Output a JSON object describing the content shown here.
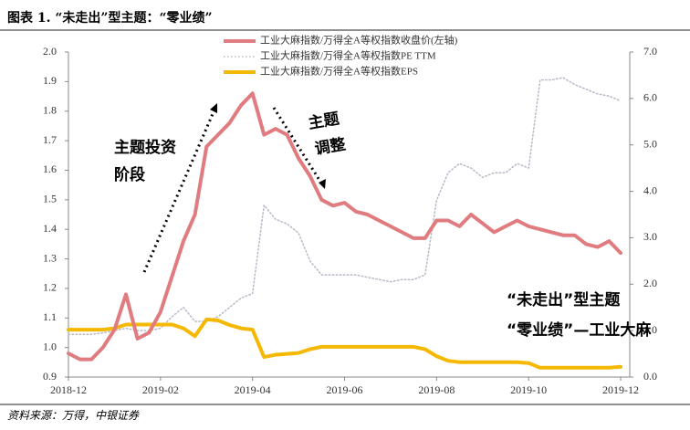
{
  "chart_data": {
    "type": "line",
    "title": "图表 1. “未走出”型主题：“零业绩”",
    "source": "资料来源：万得，中银证券",
    "annotations": [
      "主题投资",
      "阶段",
      "主题",
      "调整",
      "“未走出”型主题",
      "“零业绩”—工业大麻"
    ],
    "categories": [
      "2018-12",
      null,
      null,
      null,
      null,
      null,
      null,
      null,
      "2019-02",
      null,
      null,
      null,
      null,
      null,
      null,
      null,
      "2019-04",
      null,
      null,
      null,
      null,
      null,
      null,
      null,
      "2019-06",
      null,
      null,
      null,
      null,
      null,
      null,
      null,
      "2019-08",
      null,
      null,
      null,
      null,
      null,
      null,
      null,
      "2019-10",
      null,
      null,
      null,
      null,
      null,
      null,
      null,
      "2019-12"
    ],
    "ylim": [
      0.9,
      2.0
    ],
    "yticks": [
      0.9,
      {
        "value": 1,
        "label": "1.0"
      },
      1.1,
      1.2,
      1.3,
      1.4,
      1.5,
      1.6,
      1.7,
      1.8,
      1.9,
      {
        "value": 2,
        "label": "2.0"
      }
    ],
    "y2lim": [
      0,
      7
    ],
    "y2ticks": [
      {
        "value": 0,
        "label": "0.0"
      },
      {
        "value": 1,
        "label": "1.0"
      },
      {
        "value": 2,
        "label": "2.0"
      },
      {
        "value": 3,
        "label": "3.0"
      },
      {
        "value": 4,
        "label": "4.0"
      },
      {
        "value": 5,
        "label": "5.0"
      },
      {
        "value": 6,
        "label": "6.0"
      },
      {
        "value": 7,
        "label": "7.0"
      }
    ],
    "series": [
      {
        "name": "工业大麻指数/万得全A等权指数收盘价(左轴)",
        "color": "#e07b7f",
        "style": "solid",
        "values": [
          0.98,
          0.96,
          0.96,
          1.0,
          1.06,
          1.18,
          1.03,
          1.05,
          1.12,
          1.24,
          1.36,
          1.45,
          1.68,
          1.72,
          1.76,
          1.82,
          1.86,
          1.72,
          1.74,
          1.72,
          1.64,
          1.58,
          1.5,
          1.48,
          1.49,
          1.46,
          1.45,
          1.43,
          1.41,
          1.39,
          1.37,
          1.37,
          1.43,
          1.43,
          1.41,
          1.45,
          1.42,
          1.39,
          1.41,
          1.43,
          1.41,
          1.4,
          1.39,
          1.38,
          1.38,
          1.35,
          1.34,
          1.36,
          1.32
        ]
      },
      {
        "name": "工业大麻指数/万得全A等权指数PE TTM",
        "color": "#b8b8c8",
        "style": "dotted",
        "axis": "y2",
        "values": [
          0.92,
          0.92,
          0.92,
          0.95,
          1.0,
          1.05,
          1.0,
          1.0,
          1.05,
          1.3,
          1.5,
          1.2,
          1.2,
          1.3,
          1.5,
          1.7,
          1.8,
          3.7,
          3.4,
          3.3,
          3.1,
          2.5,
          2.2,
          2.2,
          2.2,
          2.2,
          2.15,
          2.1,
          2.05,
          2.1,
          2.1,
          2.2,
          3.8,
          4.4,
          4.6,
          4.5,
          4.3,
          4.4,
          4.4,
          4.6,
          4.5,
          6.4,
          6.4,
          6.45,
          6.3,
          6.2,
          6.1,
          6.05,
          5.95
        ]
      },
      {
        "name": "工业大麻指数/万得全A等权指数EPS",
        "color": "#f5b800",
        "style": "solid",
        "axis": "y2",
        "values": [
          1.02,
          1.02,
          1.02,
          1.02,
          1.05,
          1.13,
          1.13,
          1.13,
          1.13,
          1.13,
          1.05,
          0.88,
          1.24,
          1.22,
          1.12,
          1.05,
          1.02,
          0.43,
          0.48,
          0.5,
          0.52,
          0.6,
          0.65,
          0.65,
          0.65,
          0.65,
          0.65,
          0.65,
          0.65,
          0.65,
          0.65,
          0.6,
          0.45,
          0.35,
          0.32,
          0.32,
          0.32,
          0.32,
          0.32,
          0.32,
          0.3,
          0.2,
          0.2,
          0.2,
          0.2,
          0.2,
          0.2,
          0.2,
          0.22
        ]
      }
    ]
  }
}
